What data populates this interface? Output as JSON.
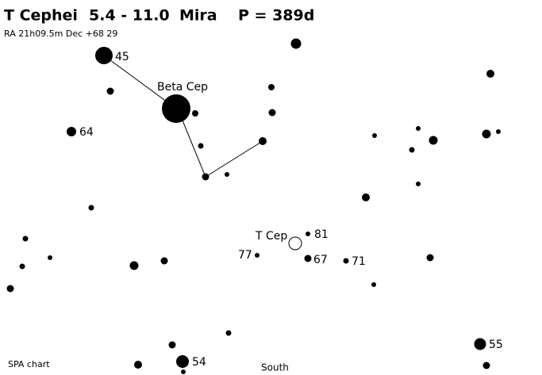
{
  "header": {
    "title": "T Cephei",
    "range": "5.4 - 11.0",
    "variable_type": "Mira",
    "period": "P = 389d",
    "coords": "RA 21h09.5m  Dec +68 29"
  },
  "labels": {
    "bright_star": "Beta Cep",
    "target": "T Cep"
  },
  "comparison_stars": [
    "45",
    "64",
    "81",
    "77",
    "67",
    "71",
    "55",
    "54"
  ],
  "footer": {
    "credit": "SPA chart",
    "direction": "South"
  }
}
